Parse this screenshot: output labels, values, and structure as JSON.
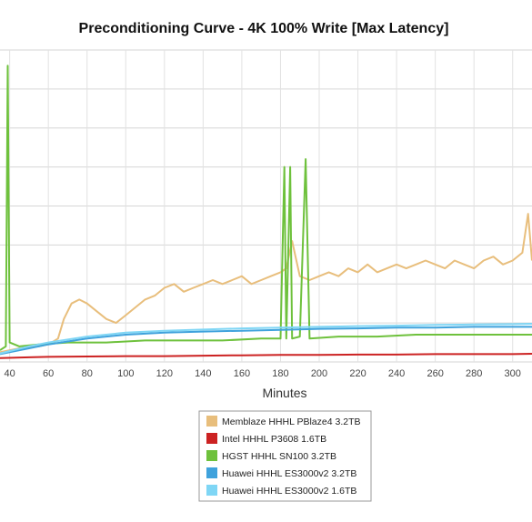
{
  "chart_data": {
    "type": "line",
    "title": "Preconditioning Curve - 4K 100% Write [Max Latency]",
    "xlabel": "Minutes",
    "ylabel": "",
    "xlim": [
      35,
      310
    ],
    "ylim": [
      0,
      8
    ],
    "x_ticks": [
      40,
      60,
      80,
      100,
      120,
      140,
      160,
      180,
      200,
      220,
      240,
      260,
      280,
      300
    ],
    "grid": true,
    "legend_position": "bottom-center",
    "series": [
      {
        "name": "Memblaze HHHL PBlaze4 3.2TB",
        "color": "#e8be7c",
        "points": [
          [
            35,
            0.25
          ],
          [
            45,
            0.35
          ],
          [
            55,
            0.4
          ],
          [
            60,
            0.45
          ],
          [
            65,
            0.6
          ],
          [
            68,
            1.1
          ],
          [
            72,
            1.5
          ],
          [
            76,
            1.6
          ],
          [
            80,
            1.5
          ],
          [
            85,
            1.3
          ],
          [
            90,
            1.1
          ],
          [
            95,
            1.0
          ],
          [
            100,
            1.2
          ],
          [
            105,
            1.4
          ],
          [
            110,
            1.6
          ],
          [
            115,
            1.7
          ],
          [
            120,
            1.9
          ],
          [
            125,
            2.0
          ],
          [
            130,
            1.8
          ],
          [
            135,
            1.9
          ],
          [
            140,
            2.0
          ],
          [
            145,
            2.1
          ],
          [
            150,
            2.0
          ],
          [
            155,
            2.1
          ],
          [
            160,
            2.2
          ],
          [
            165,
            2.0
          ],
          [
            170,
            2.1
          ],
          [
            175,
            2.2
          ],
          [
            180,
            2.3
          ],
          [
            183,
            2.4
          ],
          [
            186,
            3.1
          ],
          [
            190,
            2.2
          ],
          [
            195,
            2.1
          ],
          [
            200,
            2.2
          ],
          [
            205,
            2.3
          ],
          [
            210,
            2.2
          ],
          [
            215,
            2.4
          ],
          [
            220,
            2.3
          ],
          [
            225,
            2.5
          ],
          [
            230,
            2.3
          ],
          [
            235,
            2.4
          ],
          [
            240,
            2.5
          ],
          [
            245,
            2.4
          ],
          [
            250,
            2.5
          ],
          [
            255,
            2.6
          ],
          [
            260,
            2.5
          ],
          [
            265,
            2.4
          ],
          [
            270,
            2.6
          ],
          [
            275,
            2.5
          ],
          [
            280,
            2.4
          ],
          [
            285,
            2.6
          ],
          [
            290,
            2.7
          ],
          [
            295,
            2.5
          ],
          [
            300,
            2.6
          ],
          [
            305,
            2.8
          ],
          [
            308,
            3.8
          ],
          [
            310,
            2.6
          ]
        ]
      },
      {
        "name": "Intel HHHL P3608 1.6TB",
        "color": "#cc2222",
        "points": [
          [
            35,
            0.1
          ],
          [
            50,
            0.12
          ],
          [
            60,
            0.13
          ],
          [
            80,
            0.14
          ],
          [
            100,
            0.15
          ],
          [
            120,
            0.15
          ],
          [
            140,
            0.16
          ],
          [
            160,
            0.17
          ],
          [
            180,
            0.18
          ],
          [
            200,
            0.18
          ],
          [
            220,
            0.19
          ],
          [
            240,
            0.19
          ],
          [
            260,
            0.2
          ],
          [
            280,
            0.2
          ],
          [
            300,
            0.2
          ],
          [
            310,
            0.21
          ]
        ]
      },
      {
        "name": "HGST HHHL SN100 3.2TB",
        "color": "#6ec13c",
        "points": [
          [
            35,
            0.3
          ],
          [
            38,
            0.4
          ],
          [
            39,
            7.6
          ],
          [
            40,
            0.5
          ],
          [
            45,
            0.4
          ],
          [
            55,
            0.45
          ],
          [
            70,
            0.5
          ],
          [
            90,
            0.5
          ],
          [
            110,
            0.55
          ],
          [
            130,
            0.55
          ],
          [
            150,
            0.55
          ],
          [
            170,
            0.6
          ],
          [
            180,
            0.6
          ],
          [
            182,
            5.0
          ],
          [
            183,
            0.6
          ],
          [
            185,
            5.0
          ],
          [
            186,
            0.6
          ],
          [
            190,
            0.65
          ],
          [
            193,
            5.2
          ],
          [
            195,
            0.6
          ],
          [
            210,
            0.65
          ],
          [
            230,
            0.65
          ],
          [
            250,
            0.7
          ],
          [
            270,
            0.7
          ],
          [
            290,
            0.7
          ],
          [
            310,
            0.7
          ]
        ]
      },
      {
        "name": "Huawei HHHL ES3000v2 3.2TB",
        "color": "#3fa2dc",
        "points": [
          [
            35,
            0.2
          ],
          [
            50,
            0.35
          ],
          [
            60,
            0.45
          ],
          [
            80,
            0.6
          ],
          [
            100,
            0.7
          ],
          [
            120,
            0.75
          ],
          [
            140,
            0.78
          ],
          [
            160,
            0.8
          ],
          [
            180,
            0.82
          ],
          [
            200,
            0.85
          ],
          [
            220,
            0.86
          ],
          [
            240,
            0.88
          ],
          [
            260,
            0.88
          ],
          [
            280,
            0.9
          ],
          [
            300,
            0.9
          ],
          [
            310,
            0.9
          ]
        ]
      },
      {
        "name": "Huawei HHHL ES3000v2 1.6TB",
        "color": "#7fd6f5",
        "points": [
          [
            35,
            0.22
          ],
          [
            50,
            0.4
          ],
          [
            60,
            0.5
          ],
          [
            80,
            0.65
          ],
          [
            100,
            0.75
          ],
          [
            120,
            0.8
          ],
          [
            140,
            0.83
          ],
          [
            160,
            0.86
          ],
          [
            180,
            0.88
          ],
          [
            200,
            0.9
          ],
          [
            220,
            0.92
          ],
          [
            240,
            0.93
          ],
          [
            260,
            0.95
          ],
          [
            280,
            0.96
          ],
          [
            300,
            0.97
          ],
          [
            310,
            0.98
          ]
        ]
      }
    ]
  }
}
